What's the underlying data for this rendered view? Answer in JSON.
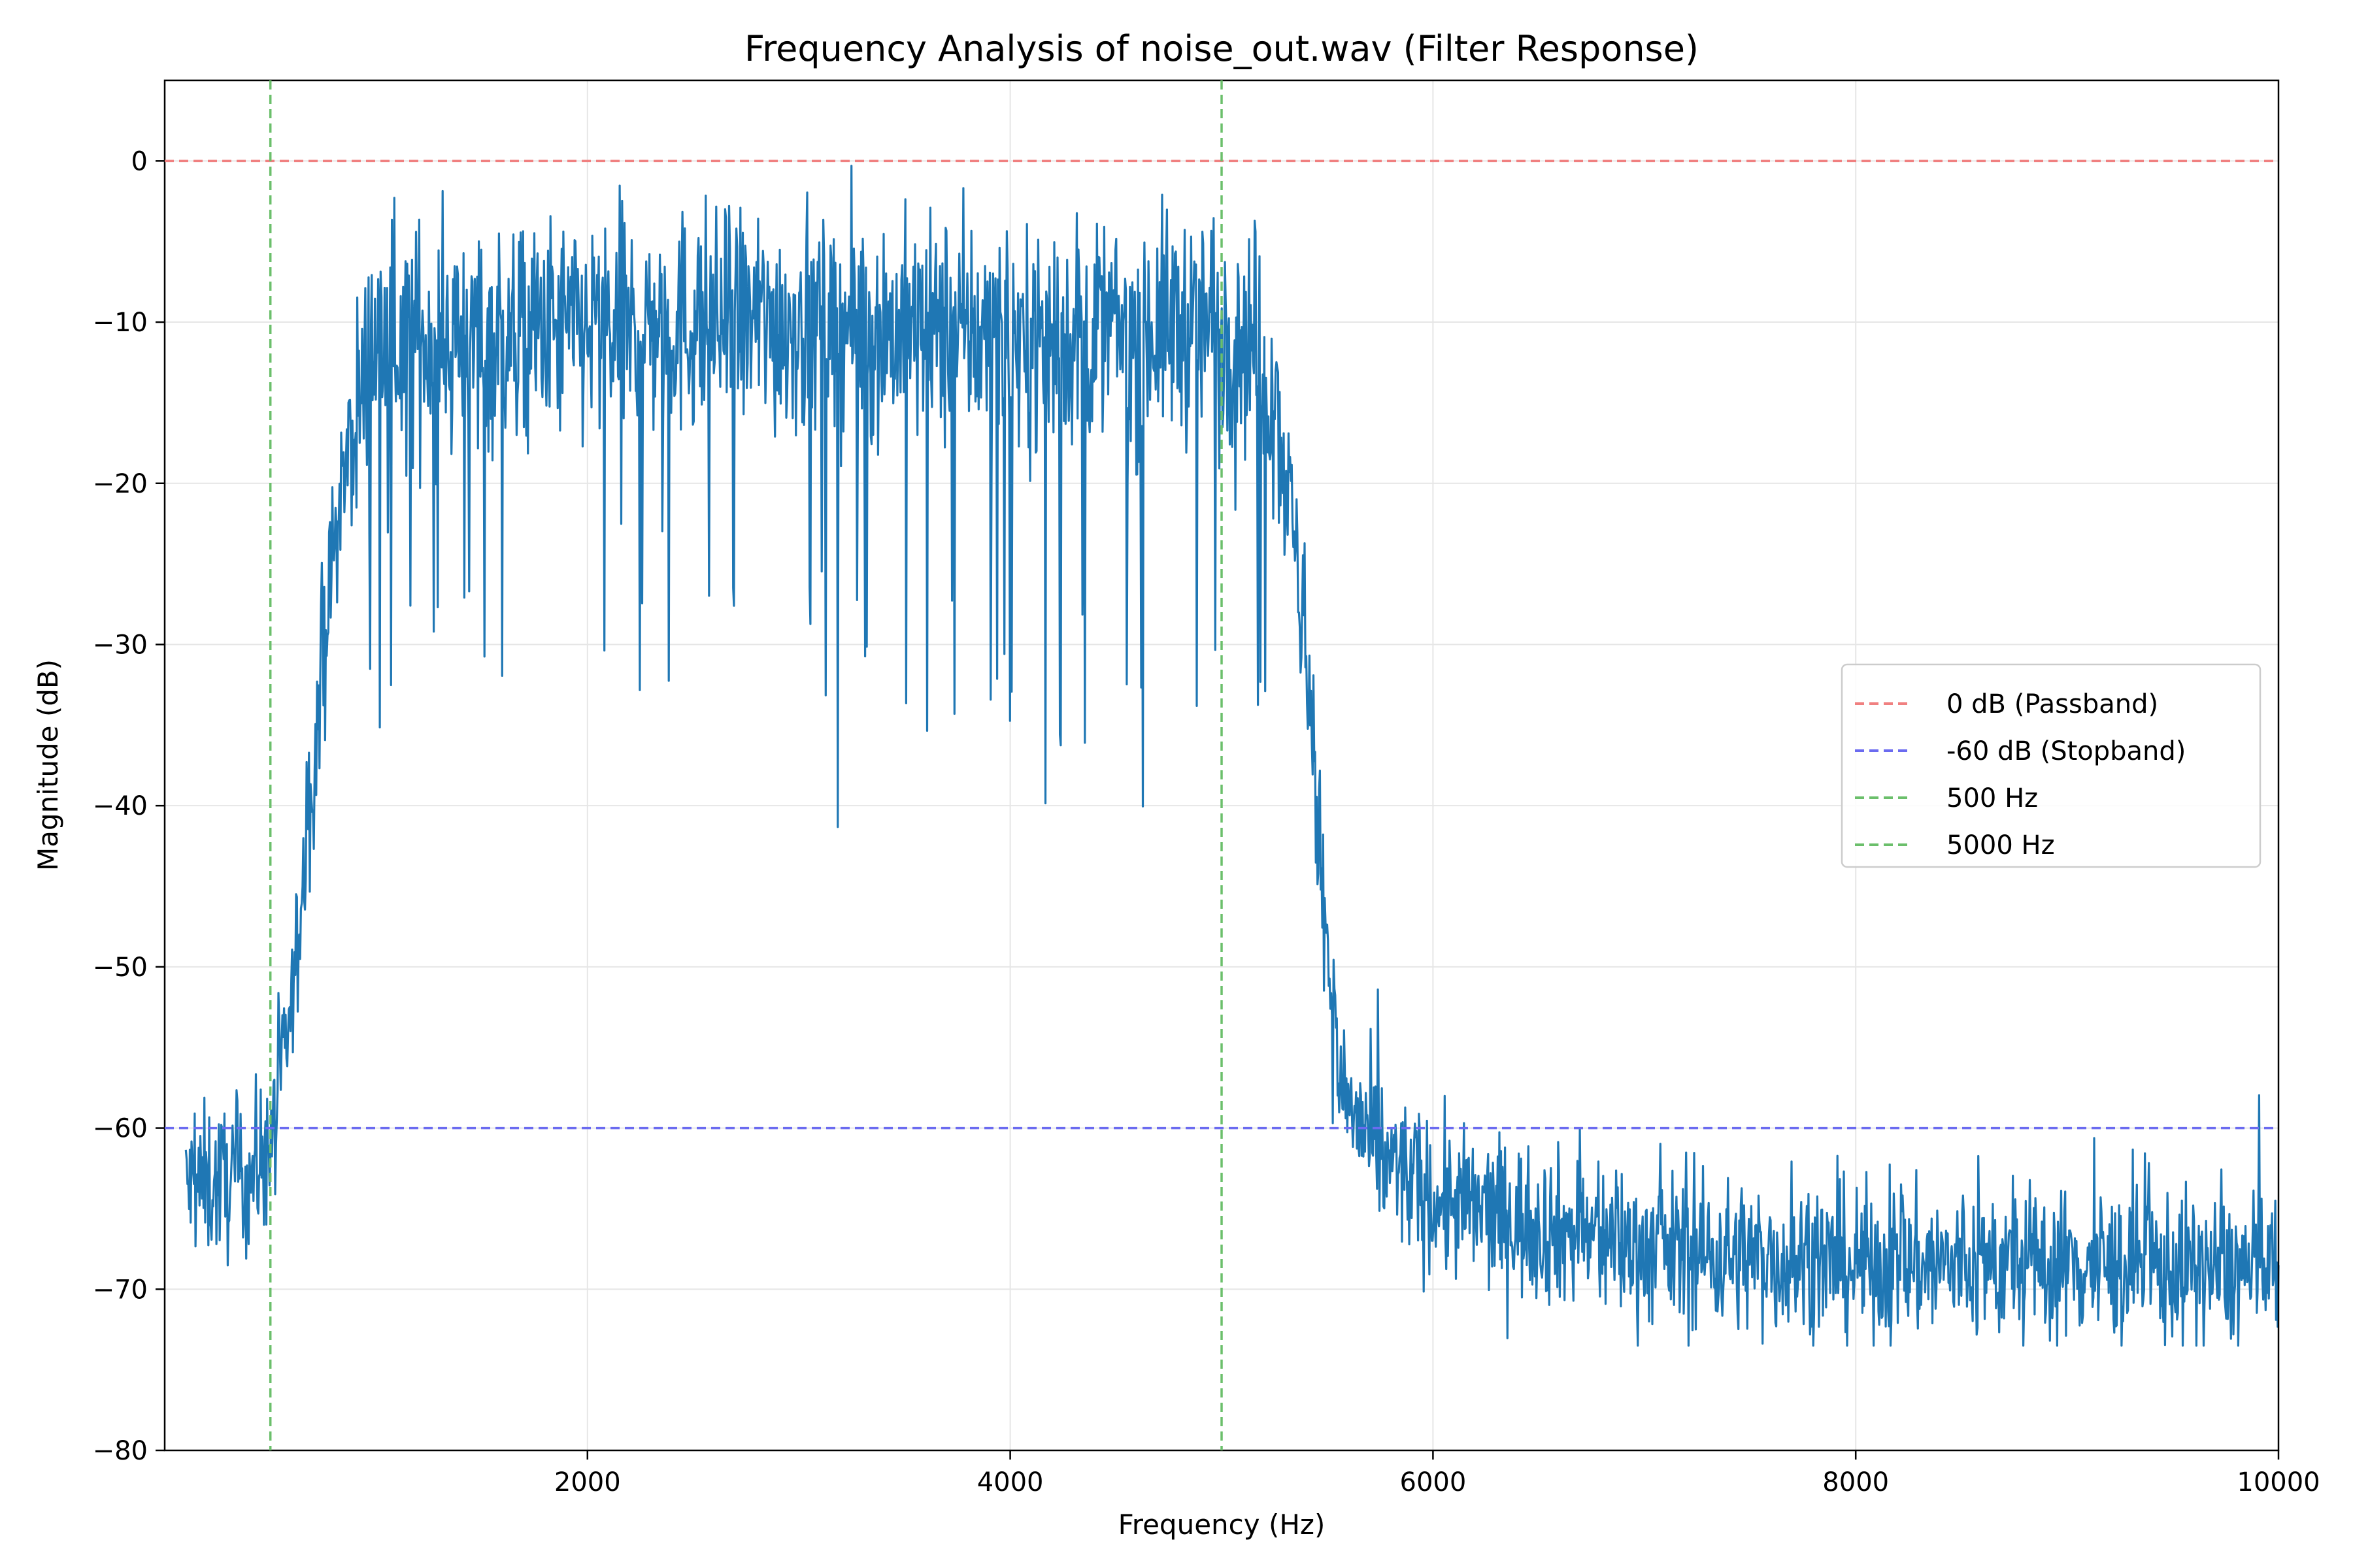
{
  "chart_data": {
    "type": "line",
    "title": "Frequency Analysis of noise_out.wav (Filter Response)",
    "xlabel": "Frequency (Hz)",
    "ylabel": "Magnitude (dB)",
    "xlim": [
      0,
      10000
    ],
    "ylim": [
      -80,
      5
    ],
    "x_ticks": [
      2000,
      4000,
      6000,
      8000,
      10000
    ],
    "x_tick_labels": [
      "2000",
      "4000",
      "6000",
      "8000",
      "10000"
    ],
    "y_ticks": [
      0,
      -10,
      -20,
      -30,
      -40,
      -50,
      -60,
      -70,
      -80
    ],
    "y_tick_labels": [
      "0",
      "−10",
      "−20",
      "−30",
      "−40",
      "−50",
      "−60",
      "−70",
      "−80"
    ],
    "grid": true,
    "legend_position": "center-right",
    "legend": [
      {
        "label": "0 dB (Passband)",
        "color": "#f08080",
        "style": "dashed"
      },
      {
        "label": "-60 dB (Stopband)",
        "color": "#6b6bf0",
        "style": "dashed"
      },
      {
        "label": "500 Hz",
        "color": "#6bbf6b",
        "style": "dashed"
      },
      {
        "label": "5000 Hz",
        "color": "#6bbf6b",
        "style": "dashed"
      }
    ],
    "reference_lines": {
      "horizontal": [
        {
          "y": 0,
          "color": "#f08080"
        },
        {
          "y": -60,
          "color": "#6b6bf0"
        }
      ],
      "vertical": [
        {
          "x": 500,
          "color": "#6bbf6b"
        },
        {
          "x": 5000,
          "color": "#6bbf6b"
        }
      ]
    },
    "series": [
      {
        "color": "#1f77b4",
        "envelope_x": [
          0,
          200,
          400,
          500,
          560,
          620,
          700,
          800,
          900,
          1000,
          1500,
          2000,
          2500,
          3000,
          3500,
          4000,
          4500,
          5000,
          5150,
          5250,
          5350,
          5450,
          5550,
          5700,
          6000,
          6500,
          7000,
          8000,
          9000,
          10000
        ],
        "envelope_y": [
          -64,
          -63.5,
          -63,
          -61,
          -57,
          -50,
          -38,
          -24,
          -16,
          -11,
          -11,
          -10.5,
          -10,
          -10,
          -10.5,
          -11,
          -10.5,
          -10,
          -11,
          -14,
          -24,
          -40,
          -57,
          -61,
          -64.5,
          -66,
          -67.5,
          -68.5,
          -68.5,
          -69
        ]
      }
    ]
  }
}
